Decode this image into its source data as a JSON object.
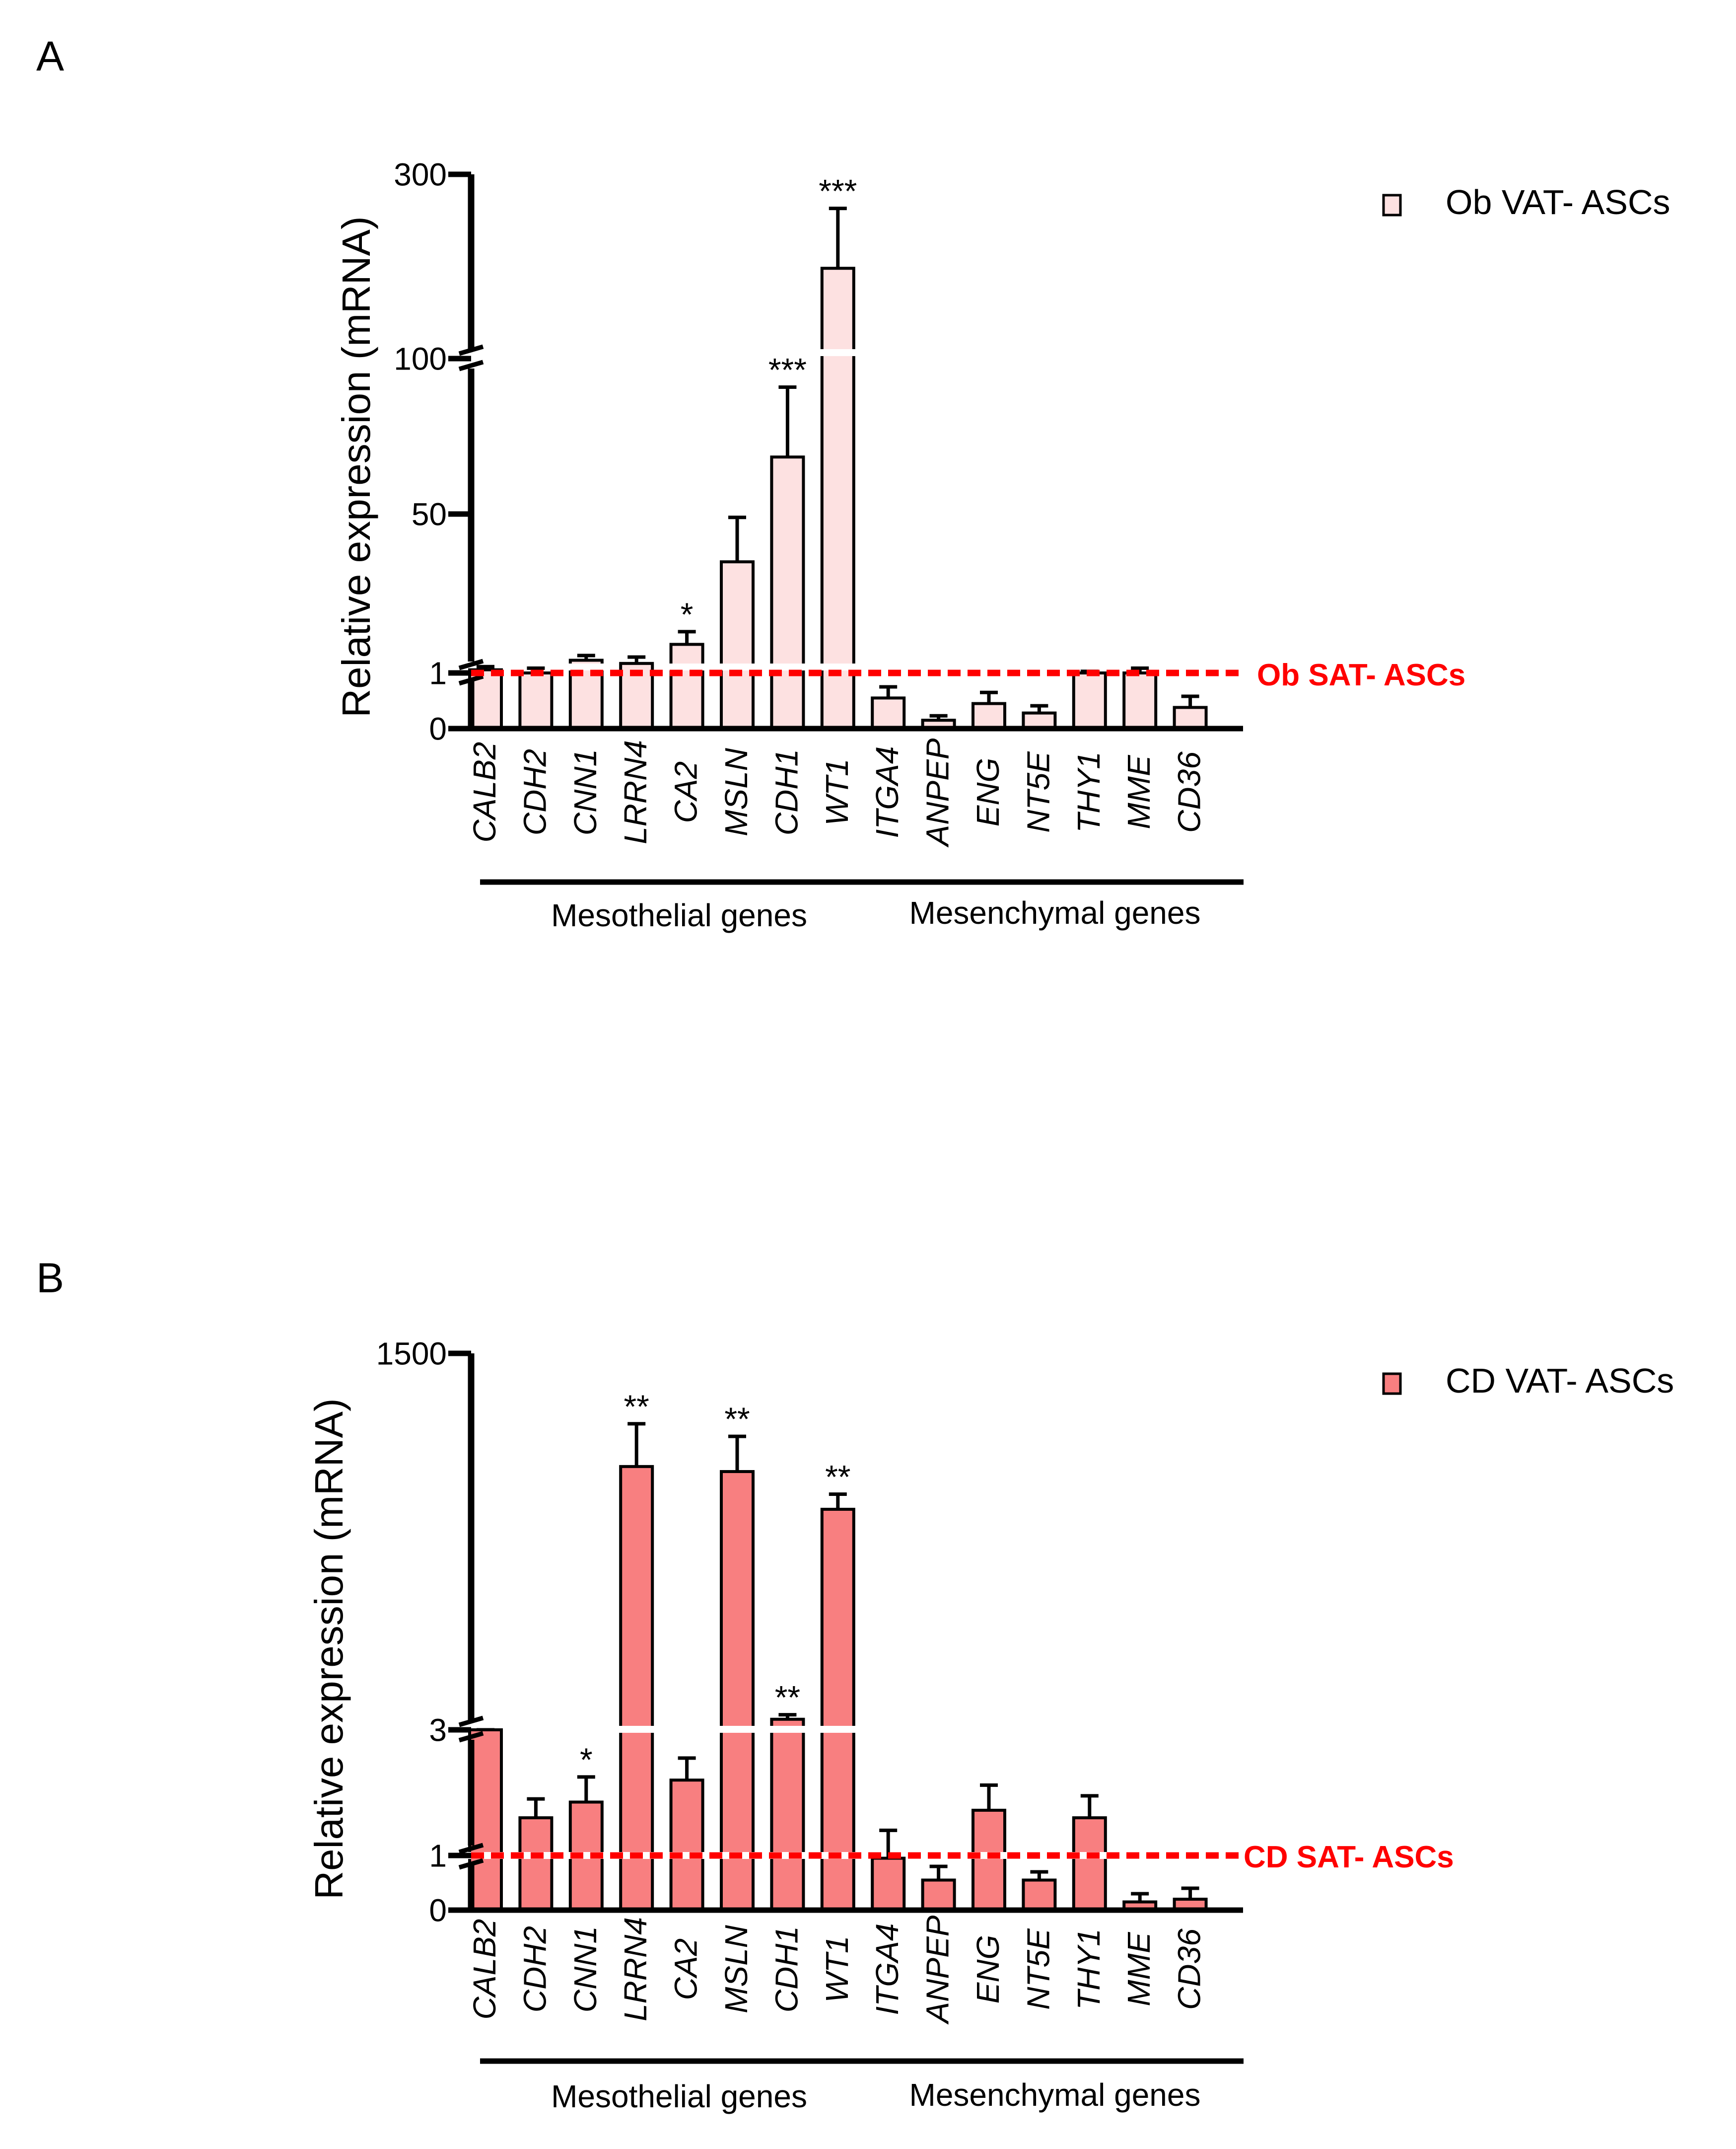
{
  "panels": [
    {
      "letter": "A",
      "ylabel": "Relative expression (mRNA)",
      "legend_label": "Ob VAT- ASCs",
      "reference_label": "Ob SAT- ASCs",
      "tick_labels": [
        "0",
        "1",
        "50",
        "100",
        "300"
      ],
      "colors": {
        "fill": "#fde1e1",
        "stroke": "#000000",
        "reference": "#ff0000"
      },
      "group_labels": [
        "Mesothelial genes",
        "Mesenchymal genes"
      ]
    },
    {
      "letter": "B",
      "ylabel": "Relative expression (mRNA)",
      "legend_label": "CD VAT- ASCs",
      "reference_label": "CD SAT- ASCs",
      "tick_labels": [
        "0",
        "1",
        "3",
        "1500"
      ],
      "colors": {
        "fill": "#f87f80",
        "stroke": "#000000",
        "reference": "#ff0000"
      },
      "group_labels": [
        "Mesothelial genes",
        "Mesenchymal genes"
      ]
    }
  ],
  "chart_data": [
    {
      "type": "bar",
      "categories": [
        "CALB2",
        "CDH2",
        "CNN1",
        "LRRN4",
        "CA2",
        "MSLN",
        "CDH1",
        "WT1",
        "ITGA4",
        "ANPEP",
        "ENG",
        "NT5E",
        "THY1",
        "MME",
        "CD36"
      ],
      "groups": [
        {
          "name": "Mesothelial genes",
          "categories": [
            "CALB2",
            "CDH2",
            "CNN1",
            "LRRN4",
            "CA2",
            "MSLN",
            "CDH1",
            "WT1"
          ]
        },
        {
          "name": "Mesenchymal genes",
          "categories": [
            "ITGA4",
            "ANPEP",
            "ENG",
            "NT5E",
            "THY1",
            "MME",
            "CD36"
          ]
        }
      ],
      "series": [
        {
          "name": "Ob VAT- ASCs",
          "values": [
            2,
            1,
            5,
            4,
            10,
            36,
            69,
            198,
            0.55,
            0.15,
            0.45,
            0.28,
            1,
            1,
            0.38
          ],
          "error": [
            1,
            1.5,
            1.5,
            2,
            4,
            14,
            22,
            65,
            0.2,
            0.08,
            0.2,
            0.13,
            0.5,
            1.5,
            0.2
          ]
        }
      ],
      "significance": [
        "",
        "",
        "",
        "",
        "*",
        "",
        "***",
        "***",
        "",
        "",
        "",
        "",
        "",
        "",
        ""
      ],
      "reference_line": {
        "y": 1,
        "label": "Ob SAT- ASCs"
      },
      "ylabel": "Relative expression (mRNA)",
      "yaxis": {
        "scale": "broken",
        "segments": [
          [
            0,
            1
          ],
          [
            1,
            100
          ],
          [
            100,
            300
          ]
        ],
        "ticks": [
          0,
          1,
          50,
          100,
          300
        ]
      },
      "legend": "top-right"
    },
    {
      "type": "bar",
      "categories": [
        "CALB2",
        "CDH2",
        "CNN1",
        "LRRN4",
        "CA2",
        "MSLN",
        "CDH1",
        "WT1",
        "ITGA4",
        "ANPEP",
        "ENG",
        "NT5E",
        "THY1",
        "MME",
        "CD36"
      ],
      "groups": [
        {
          "name": "Mesothelial genes",
          "categories": [
            "CALB2",
            "CDH2",
            "CNN1",
            "LRRN4",
            "CA2",
            "MSLN",
            "CDH1",
            "WT1"
          ]
        },
        {
          "name": "Mesenchymal genes",
          "categories": [
            "ITGA4",
            "ANPEP",
            "ENG",
            "NT5E",
            "THY1",
            "MME",
            "CD36"
          ]
        }
      ],
      "series": [
        {
          "name": "CD VAT- ASCs",
          "values": [
            3.1,
            1.6,
            1.85,
            1050,
            2.2,
            1030,
            45,
            880,
            0.95,
            0.55,
            1.72,
            0.55,
            1.6,
            0.15,
            0.2
          ],
          "error": [
            0.02,
            0.3,
            0.4,
            170,
            0.35,
            140,
            18,
            60,
            0.45,
            0.25,
            0.4,
            0.15,
            0.35,
            0.15,
            0.2
          ]
        }
      ],
      "significance": [
        "",
        "",
        "*",
        "**",
        "",
        "**",
        "**",
        "**",
        "",
        "",
        "",
        "",
        "",
        "",
        ""
      ],
      "reference_line": {
        "y": 1,
        "label": "CD SAT- ASCs"
      },
      "ylabel": "Relative expression (mRNA)",
      "yaxis": {
        "scale": "broken",
        "segments": [
          [
            0,
            1
          ],
          [
            1,
            3
          ],
          [
            3,
            1500
          ]
        ],
        "ticks": [
          0,
          1,
          3,
          1500
        ]
      },
      "legend": "top-right"
    }
  ]
}
